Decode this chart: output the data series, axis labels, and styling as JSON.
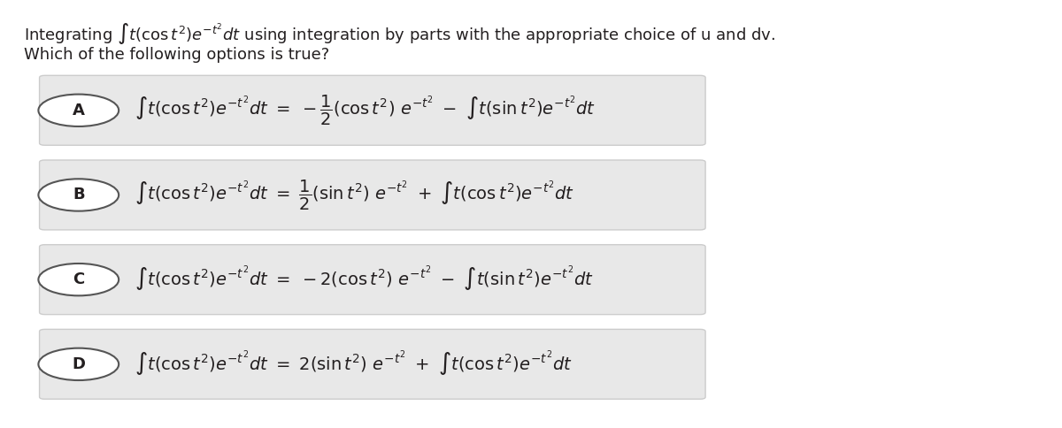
{
  "bg_color": "#ffffff",
  "text_color": "#231f20",
  "title_line1": "Integrating $\\int t(\\cos t^2)e^{-t^2}dt$ using integration by parts with the appropriate choice of u and dv.",
  "title_line2": "Which of the following options is true?",
  "options": [
    {
      "label": "A",
      "equation": "$\\int t(\\cos t^2)e^{-t^2}dt \\ = \\ -\\dfrac{1}{2}(\\cos t^2)\\ e^{-t^2} \\ - \\ \\int t(\\sin t^2)e^{-t^2}dt$"
    },
    {
      "label": "B",
      "equation": "$\\int t(\\cos t^2)e^{-t^2}dt \\ = \\ \\dfrac{1}{2}(\\sin t^2)\\ e^{-t^2} \\ + \\ \\int t(\\cos t^2)e^{-t^2}dt$"
    },
    {
      "label": "C",
      "equation": "$\\int t(\\cos t^2)e^{-t^2}dt \\ = \\ -2(\\cos t^2)\\ e^{-t^2} \\ - \\ \\int t(\\sin t^2)e^{-t^2}dt$"
    },
    {
      "label": "D",
      "equation": "$\\int t(\\cos t^2)e^{-t^2}dt \\ = \\ 2(\\sin t^2)\\ e^{-t^2} \\ + \\ \\int t(\\cos t^2)e^{-t^2}dt$"
    }
  ],
  "option_box_color": "#e8e8e8",
  "option_box_edge_color": "#cccccc",
  "label_circle_color": "#ffffff",
  "label_circle_edge_color": "#555555",
  "figsize": [
    12.0,
    4.84
  ],
  "dpi": 100,
  "header_fontsize": 13,
  "option_fontsize": 14,
  "label_fontsize": 13
}
